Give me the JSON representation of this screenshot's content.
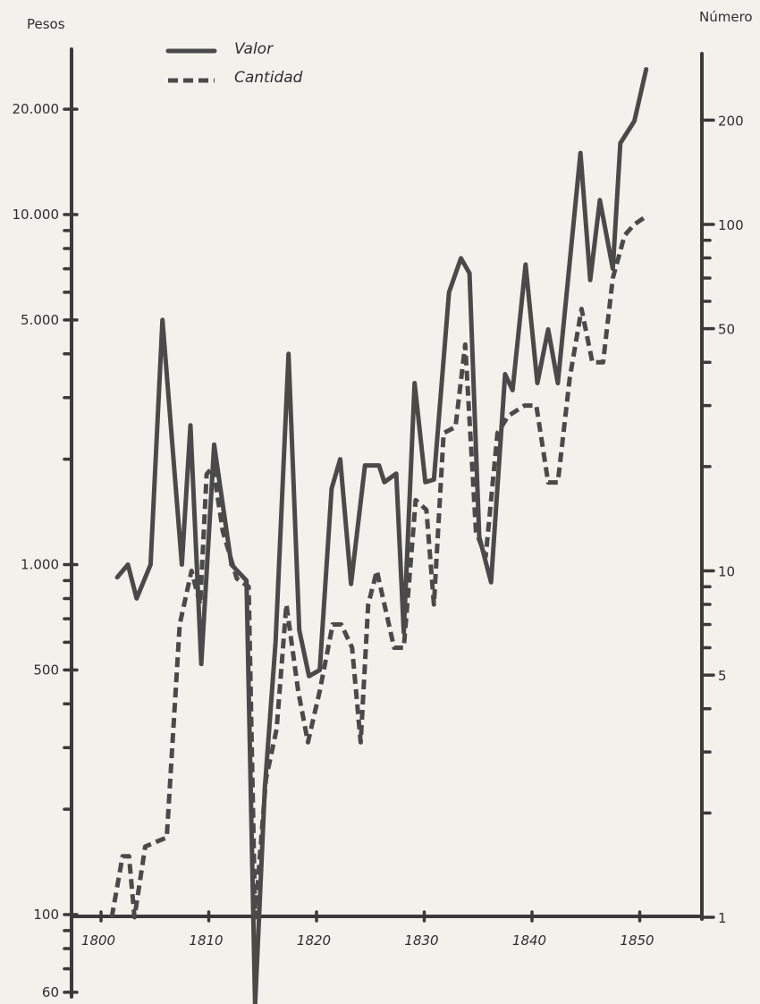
{
  "chart_data": {
    "type": "line",
    "left_axis": {
      "title": "Pesos",
      "scale": "log",
      "range": [
        60,
        20000
      ],
      "ticks": [
        60,
        100,
        500,
        1000,
        5000,
        10000,
        20000
      ],
      "tick_labels": [
        "60",
        "100",
        "500",
        "1.000",
        "5.000",
        "10.000",
        "20.000"
      ],
      "minor_ticks": [
        70,
        80,
        90,
        200,
        300,
        400,
        600,
        700,
        800,
        900,
        2000,
        3000,
        4000,
        6000,
        7000,
        8000,
        9000
      ]
    },
    "right_axis": {
      "title": "Número",
      "scale": "log",
      "range": [
        1,
        250
      ],
      "ticks": [
        1,
        5,
        10,
        50,
        100,
        200
      ],
      "tick_labels": [
        "1",
        "5",
        "10",
        "50",
        "100",
        "200"
      ],
      "minor_ticks": [
        2,
        3,
        4,
        6,
        7,
        8,
        9,
        20,
        30,
        40,
        60,
        70,
        80,
        90
      ]
    },
    "x_axis": {
      "range": [
        1799,
        1851
      ],
      "ticks": [
        1800,
        1810,
        1820,
        1830,
        1840,
        1850
      ],
      "tick_labels": [
        "1800",
        "1810",
        "1820",
        "1830",
        "1840",
        "1850"
      ]
    },
    "legend": {
      "placement": "top-left"
    },
    "series": [
      {
        "name": "Valor",
        "axis": "left",
        "style": "solid",
        "points": [
          [
            1801.5,
            920
          ],
          [
            1802.5,
            1000
          ],
          [
            1803.3,
            800
          ],
          [
            1804.6,
            1000
          ],
          [
            1805.7,
            5000
          ],
          [
            1807.5,
            1000
          ],
          [
            1808.3,
            2500
          ],
          [
            1809.3,
            520
          ],
          [
            1810.5,
            2200
          ],
          [
            1812.1,
            1000
          ],
          [
            1813.5,
            900
          ],
          [
            1814.3,
            55
          ],
          [
            1815.2,
            230
          ],
          [
            1816.2,
            600
          ],
          [
            1817.4,
            4000
          ],
          [
            1818.4,
            650
          ],
          [
            1819.3,
            480
          ],
          [
            1820.3,
            500
          ],
          [
            1821.4,
            1650
          ],
          [
            1822.2,
            2000
          ],
          [
            1823.2,
            880
          ],
          [
            1824.5,
            1920
          ],
          [
            1825.8,
            1920
          ],
          [
            1826.3,
            1720
          ],
          [
            1827.4,
            1820
          ],
          [
            1828.1,
            640
          ],
          [
            1829.1,
            3300
          ],
          [
            1830.1,
            1720
          ],
          [
            1830.9,
            1750
          ],
          [
            1832.3,
            6000
          ],
          [
            1833.4,
            7500
          ],
          [
            1834.2,
            6800
          ],
          [
            1835.1,
            1200
          ],
          [
            1836.2,
            890
          ],
          [
            1837.5,
            3500
          ],
          [
            1838.2,
            3150
          ],
          [
            1839.4,
            7200
          ],
          [
            1840.5,
            3300
          ],
          [
            1841.5,
            4700
          ],
          [
            1842.4,
            3300
          ],
          [
            1844.5,
            15000
          ],
          [
            1845.4,
            6500
          ],
          [
            1846.3,
            11000
          ],
          [
            1847.5,
            7000
          ],
          [
            1848.2,
            16000
          ],
          [
            1849.5,
            18500
          ],
          [
            1850.6,
            26000
          ]
        ]
      },
      {
        "name": "Cantidad",
        "axis": "right",
        "style": "dashed",
        "points": [
          [
            1801.0,
            1
          ],
          [
            1802.0,
            1.5
          ],
          [
            1802.6,
            1.5
          ],
          [
            1803.1,
            1
          ],
          [
            1804.1,
            1.6
          ],
          [
            1805.1,
            1.65
          ],
          [
            1806.1,
            1.7
          ],
          [
            1807.3,
            7
          ],
          [
            1808.4,
            10
          ],
          [
            1809.2,
            8
          ],
          [
            1809.8,
            19
          ],
          [
            1810.4,
            20
          ],
          [
            1811.3,
            13
          ],
          [
            1812.6,
            9.5
          ],
          [
            1813.7,
            9
          ],
          [
            1814.3,
            1
          ],
          [
            1815.3,
            2.5
          ],
          [
            1816.3,
            3.5
          ],
          [
            1817.2,
            8
          ],
          [
            1818.3,
            4.5
          ],
          [
            1819.2,
            3.2
          ],
          [
            1820.3,
            4.5
          ],
          [
            1821.5,
            7
          ],
          [
            1822.3,
            7
          ],
          [
            1823.3,
            6
          ],
          [
            1824.1,
            3.2
          ],
          [
            1824.8,
            8
          ],
          [
            1825.6,
            10
          ],
          [
            1827.2,
            6
          ],
          [
            1828.1,
            6
          ],
          [
            1829.2,
            16
          ],
          [
            1830.2,
            15
          ],
          [
            1830.9,
            8
          ],
          [
            1831.8,
            25
          ],
          [
            1832.9,
            26
          ],
          [
            1833.8,
            45
          ],
          [
            1834.8,
            13
          ],
          [
            1835.7,
            11
          ],
          [
            1836.8,
            25
          ],
          [
            1837.8,
            28
          ],
          [
            1839.3,
            30
          ],
          [
            1840.4,
            30
          ],
          [
            1841.5,
            18
          ],
          [
            1842.4,
            18
          ],
          [
            1843.5,
            36
          ],
          [
            1844.6,
            57
          ],
          [
            1845.6,
            40
          ],
          [
            1846.6,
            40
          ],
          [
            1847.5,
            70
          ],
          [
            1848.6,
            93
          ],
          [
            1849.5,
            100
          ],
          [
            1850.5,
            105
          ]
        ]
      }
    ]
  }
}
